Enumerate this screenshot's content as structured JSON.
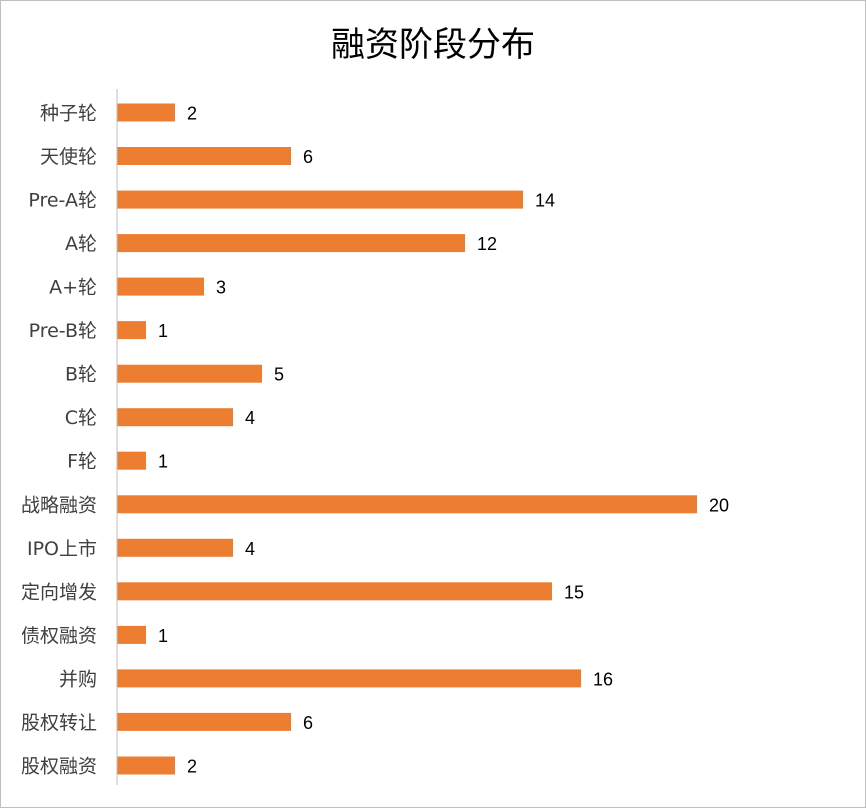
{
  "chart_data": {
    "type": "bar",
    "orientation": "horizontal",
    "title": "融资阶段分布",
    "categories": [
      "种子轮",
      "天使轮",
      "Pre-A轮",
      "A轮",
      "A+轮",
      "Pre-B轮",
      "B轮",
      "C轮",
      "F轮",
      "战略融资",
      "IPO上市",
      "定向增发",
      "债权融资",
      "并购",
      "股权转让",
      "股权融资"
    ],
    "values": [
      2,
      6,
      14,
      12,
      3,
      1,
      5,
      4,
      1,
      20,
      4,
      15,
      1,
      16,
      6,
      2
    ],
    "xlim": [
      0,
      20
    ],
    "grid": false,
    "data_labels": true,
    "bar_color": "#ED7D31",
    "axis_color": "#BFBFBF"
  }
}
